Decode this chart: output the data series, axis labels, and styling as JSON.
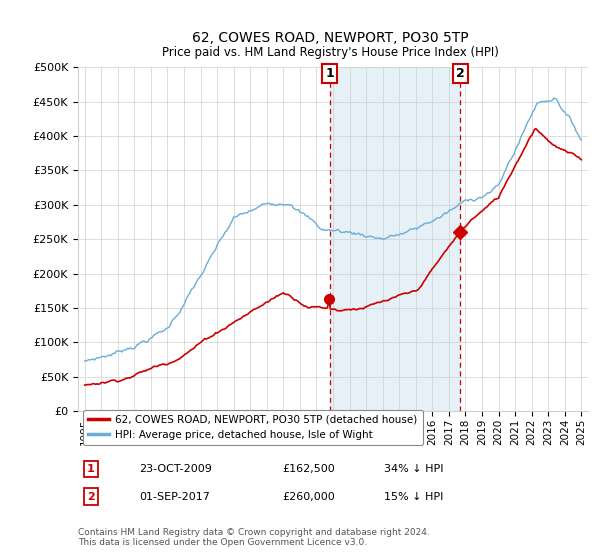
{
  "title": "62, COWES ROAD, NEWPORT, PO30 5TP",
  "subtitle": "Price paid vs. HM Land Registry's House Price Index (HPI)",
  "sale1_date": "23-OCT-2009",
  "sale1_price": "£162,500",
  "sale1_label": "34% ↓ HPI",
  "sale2_date": "01-SEP-2017",
  "sale2_price": "£260,000",
  "sale2_label": "15% ↓ HPI",
  "ylabel_ticks": [
    0,
    50000,
    100000,
    150000,
    200000,
    250000,
    300000,
    350000,
    400000,
    450000,
    500000
  ],
  "ylabel_labels": [
    "£0",
    "£50K",
    "£100K",
    "£150K",
    "£200K",
    "£250K",
    "£300K",
    "£350K",
    "£400K",
    "£450K",
    "£500K"
  ],
  "legend_entry1": "62, COWES ROAD, NEWPORT, PO30 5TP (detached house)",
  "legend_entry2": "HPI: Average price, detached house, Isle of Wight",
  "footer": "Contains HM Land Registry data © Crown copyright and database right 2024.\nThis data is licensed under the Open Government Licence v3.0.",
  "hpi_color": "#6aaed6",
  "price_color": "#cc0000",
  "shade_color": "#daeaf5",
  "annotation_box_color": "#cc0000",
  "sale1_year": 2009.79,
  "sale2_year": 2017.67,
  "sale1_price_val": 162500,
  "sale2_price_val": 260000,
  "ylim": [
    0,
    500000
  ],
  "xlim_left": 1994.6,
  "xlim_right": 2025.4
}
